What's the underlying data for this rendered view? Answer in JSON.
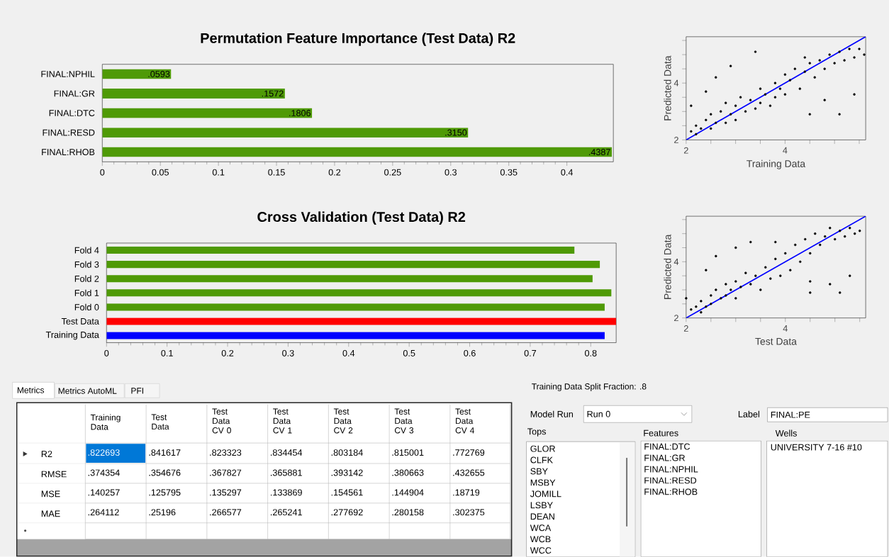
{
  "chart_data": [
    {
      "type": "bar",
      "orientation": "horizontal",
      "title": "Permutation Feature Importance (Test Data) R2",
      "categories": [
        "FINAL:NPHIL",
        "FINAL:GR",
        "FINAL:DTC",
        "FINAL:RESD",
        "FINAL:RHOB"
      ],
      "values": [
        0.0593,
        0.1572,
        0.1806,
        0.315,
        0.4387
      ],
      "value_labels": [
        ".0593",
        ".1572",
        ".1806",
        ".3150",
        ".4387"
      ],
      "color": "#4f9a06",
      "xlim": [
        0,
        0.44
      ],
      "xticks": [
        0,
        0.05,
        0.1,
        0.15,
        0.2,
        0.25,
        0.3,
        0.35,
        0.4
      ]
    },
    {
      "type": "bar",
      "orientation": "horizontal",
      "title": "Cross Validation (Test Data) R2",
      "categories": [
        "Fold 4",
        "Fold 3",
        "Fold 2",
        "Fold 1",
        "Fold 0",
        "Test Data",
        "Training Data"
      ],
      "values": [
        0.773,
        0.815,
        0.803,
        0.834,
        0.823,
        0.842,
        0.823
      ],
      "colors": [
        "#4f9a06",
        "#4f9a06",
        "#4f9a06",
        "#4f9a06",
        "#4f9a06",
        "#ff0000",
        "#0000ff"
      ],
      "xlim": [
        0,
        0.842
      ],
      "xticks": [
        0,
        0.1,
        0.2,
        0.3,
        0.4,
        0.5,
        0.6,
        0.7,
        0.8
      ]
    },
    {
      "type": "scatter",
      "xlabel": "Training Data",
      "ylabel": "Predicted Data",
      "marker": "circle",
      "xlim": [
        2,
        5.63
      ],
      "ylim": [
        2,
        5.63
      ],
      "xticks": [
        2,
        {
          "value": 2.5,
          "label": null
        },
        {
          "value": 3,
          "label": null
        },
        {
          "value": 3.5,
          "label": null
        },
        4,
        {
          "value": 4.5,
          "label": null
        },
        {
          "value": 5,
          "label": null
        },
        {
          "value": 5.5,
          "label": null
        }
      ],
      "yticks": [
        2,
        {
          "value": 2.5,
          "label": null
        },
        {
          "value": 3,
          "label": null
        },
        {
          "value": 3.5,
          "label": null
        },
        4,
        {
          "value": 4.5,
          "label": null
        },
        {
          "value": 5,
          "label": null
        },
        {
          "value": 5.5,
          "label": null
        }
      ],
      "series": [
        {
          "color": "#000000",
          "x": [
            2.1,
            2.2,
            2.2,
            2.3,
            2.4,
            2.5,
            2.5,
            2.6,
            2.7,
            2.8,
            2.8,
            2.9,
            3.0,
            3.0,
            3.1,
            3.2,
            3.3,
            3.4,
            3.5,
            3.5,
            3.6,
            3.7,
            3.8,
            3.8,
            3.9,
            4.0,
            4.0,
            4.1,
            4.2,
            4.3,
            4.4,
            4.5,
            4.6,
            4.7,
            4.8,
            4.9,
            5.0,
            5.1,
            5.2,
            5.3,
            5.4,
            5.5,
            5.6,
            2.1,
            2.4,
            2.6,
            2.9,
            3.4,
            4.5,
            5.1,
            4.8,
            5.4,
            4.4
          ],
          "values": [
            2.3,
            2.2,
            2.5,
            2.4,
            2.7,
            2.4,
            2.9,
            2.6,
            3.0,
            2.6,
            3.3,
            2.9,
            3.2,
            2.7,
            3.5,
            3.0,
            3.4,
            3.1,
            3.8,
            3.3,
            3.6,
            3.2,
            4.0,
            3.5,
            3.8,
            4.3,
            3.6,
            4.1,
            4.5,
            3.8,
            4.4,
            4.7,
            4.2,
            4.8,
            4.5,
            5.0,
            4.7,
            5.1,
            4.8,
            5.2,
            4.9,
            5.2,
            5.0,
            3.2,
            3.7,
            4.2,
            4.6,
            5.1,
            2.9,
            2.9,
            3.4,
            3.6,
            4.9
          ]
        },
        {
          "type": "line",
          "marker": "none",
          "color": "#0000ff",
          "x": [
            2,
            5.63
          ],
          "values": [
            2,
            5.63
          ]
        }
      ]
    },
    {
      "type": "scatter",
      "xlabel": "Test Data",
      "ylabel": "Predicted Data",
      "marker": "circle",
      "xlim": [
        2,
        5.62
      ],
      "ylim": [
        2,
        5.62
      ],
      "xticks": [
        2,
        {
          "value": 2.5,
          "label": null
        },
        {
          "value": 3,
          "label": null
        },
        {
          "value": 3.5,
          "label": null
        },
        4,
        {
          "value": 4.5,
          "label": null
        },
        {
          "value": 5,
          "label": null
        },
        {
          "value": 5.5,
          "label": null
        }
      ],
      "yticks": [
        2,
        {
          "value": 2.5,
          "label": null
        },
        {
          "value": 3,
          "label": null
        },
        {
          "value": 3.5,
          "label": null
        },
        4,
        {
          "value": 4.5,
          "label": null
        },
        {
          "value": 5,
          "label": null
        },
        {
          "value": 5.5,
          "label": null
        }
      ],
      "series": [
        {
          "color": "#000000",
          "x": [
            2.1,
            2.2,
            2.3,
            2.3,
            2.4,
            2.5,
            2.5,
            2.6,
            2.7,
            2.8,
            2.8,
            2.9,
            3.0,
            3.0,
            3.1,
            3.2,
            3.3,
            3.4,
            3.5,
            3.6,
            3.7,
            3.8,
            3.9,
            4.0,
            4.1,
            4.2,
            4.3,
            4.4,
            4.5,
            4.6,
            4.7,
            4.8,
            4.9,
            5.0,
            5.1,
            5.2,
            5.3,
            5.4,
            5.5,
            2.0,
            2.4,
            2.6,
            3.0,
            3.3,
            3.8,
            4.5,
            5.1,
            4.5,
            5.3,
            4.9
          ],
          "values": [
            2.3,
            2.4,
            2.2,
            2.6,
            2.4,
            2.8,
            2.5,
            3.0,
            2.7,
            3.2,
            2.8,
            3.0,
            3.3,
            2.7,
            3.1,
            3.6,
            3.2,
            3.5,
            3.0,
            3.8,
            3.4,
            4.1,
            3.5,
            4.3,
            3.7,
            4.6,
            4.0,
            4.8,
            4.3,
            5.0,
            4.6,
            4.9,
            5.2,
            4.8,
            5.1,
            4.9,
            5.2,
            5.0,
            5.1,
            2.7,
            3.7,
            4.2,
            4.5,
            4.7,
            4.7,
            2.9,
            2.9,
            3.3,
            3.5,
            3.2
          ]
        },
        {
          "type": "line",
          "marker": "none",
          "color": "#0000ff",
          "x": [
            2,
            5.62
          ],
          "values": [
            2,
            5.62
          ]
        }
      ]
    },
    {
      "type": "other",
      "annotations": [
        "Metrics",
        "Metrics AutoML",
        "PFI",
        "Training Data",
        "Test Data",
        "Test Data CV 0",
        "Test Data CV 1",
        "Test Data CV 2",
        "Test Data CV 3",
        "Test Data CV 4",
        "R2",
        ".822693",
        ".841617",
        ".823323",
        ".834454",
        ".803184",
        ".815001",
        ".772769",
        "RMSE",
        ".374354",
        ".354676",
        ".367827",
        ".365881",
        ".393142",
        ".380663",
        ".432655",
        "MSE",
        ".140257",
        ".125795",
        ".135297",
        ".133869",
        ".154561",
        ".144904",
        ".18719",
        "MAE",
        ".264112",
        ".25196",
        ".266577",
        ".265241",
        ".277692",
        ".280158",
        ".302375",
        "Training Data Split Fraction: .8",
        "Model Run",
        "Run 0",
        "Label",
        "FINAL:PE",
        "Tops",
        "GLOR",
        "CLFK",
        "SBY",
        "MSBY",
        "JOMILL",
        "LSBY",
        "DEAN",
        "WCA",
        "WCB",
        "WCC",
        "Features",
        "FINAL:DTC",
        "FINAL:GR",
        "FINAL:NPHIL",
        "FINAL:RESD",
        "FINAL:RHOB",
        "Wells",
        "UNIVERSITY 7-16 #10"
      ]
    }
  ]
}
